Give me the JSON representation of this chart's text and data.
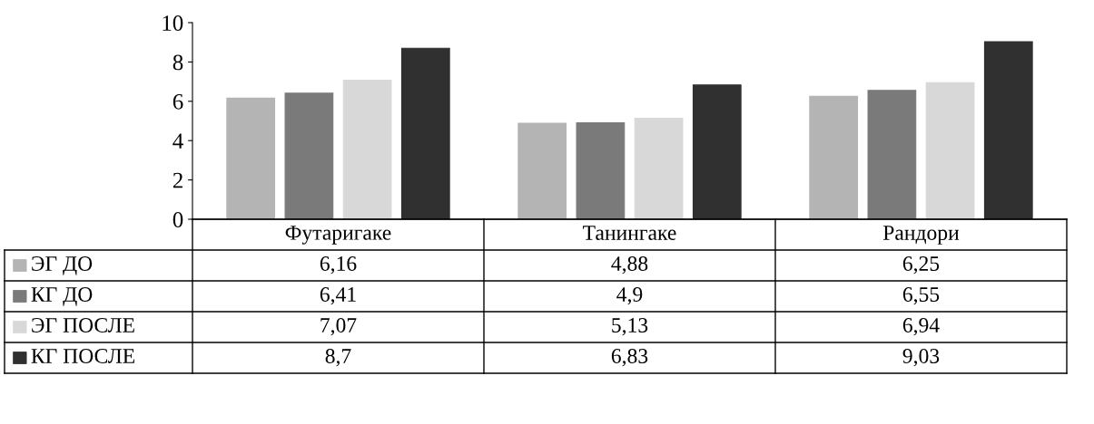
{
  "chart_data": {
    "type": "bar",
    "categories": [
      "Футаригаке",
      "Танингаке",
      "Рандори"
    ],
    "series": [
      {
        "name": "ЭГ ДО",
        "color": "#b4b4b4",
        "values": [
          6.16,
          4.88,
          6.25
        ],
        "value_labels": [
          "6,16",
          "4,88",
          "6,25"
        ]
      },
      {
        "name": "КГ ДО",
        "color": "#7a7a7a",
        "values": [
          6.41,
          4.9,
          6.55
        ],
        "value_labels": [
          "6,41",
          "4,9",
          "6,55"
        ]
      },
      {
        "name": "ЭГ ПОСЛЕ",
        "color": "#d8d8d8",
        "values": [
          7.07,
          5.13,
          6.94
        ],
        "value_labels": [
          "7,07",
          "5,13",
          "6,94"
        ]
      },
      {
        "name": "КГ ПОСЛЕ",
        "color": "#303030",
        "values": [
          8.7,
          6.83,
          9.03
        ],
        "value_labels": [
          "8,7",
          "6,83",
          "9,03"
        ]
      }
    ],
    "legend": "bottom left",
    "ylim": [
      0,
      10
    ],
    "yticks": [
      0,
      2,
      4,
      6,
      8,
      10
    ],
    "grid": false
  }
}
